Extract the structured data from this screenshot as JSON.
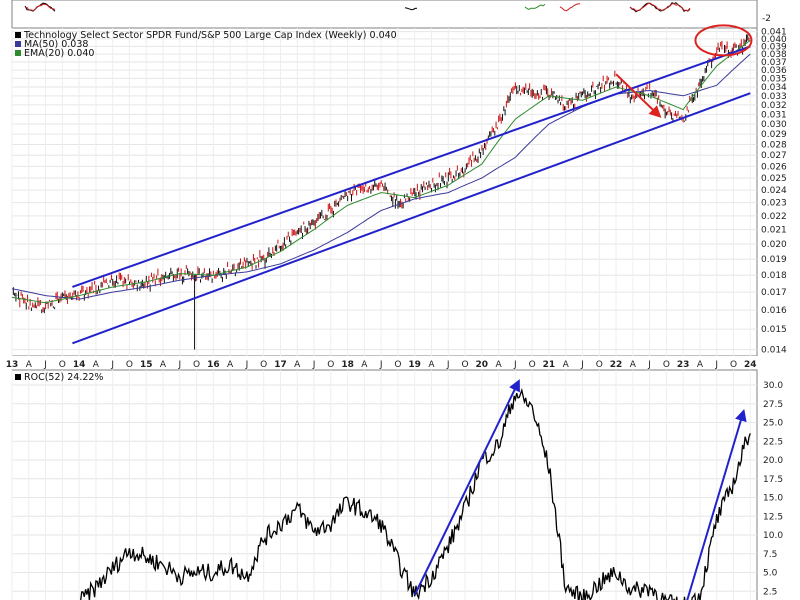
{
  "chart_data": [
    {
      "type": "line",
      "chart_style": "ohlc-bars",
      "title": "Technology Select Sector SPDR Fund/S&P 500 Large Cap Index (Weekly) 0.040",
      "y_scale": "log",
      "ylim": [
        0.0137,
        0.0415
      ],
      "y_ticks": [
        0.014,
        0.015,
        0.016,
        0.017,
        0.018,
        0.019,
        0.02,
        0.021,
        0.022,
        0.023,
        0.024,
        0.025,
        0.026,
        0.027,
        0.028,
        0.029,
        0.03,
        0.031,
        0.032,
        0.033,
        0.034,
        0.035,
        0.036,
        0.037,
        0.038,
        0.039,
        0.04,
        0.041
      ],
      "x_ticks": [
        "13",
        "A",
        "J",
        "O",
        "14",
        "A",
        "J",
        "O",
        "15",
        "A",
        "J",
        "O",
        "16",
        "A",
        "J",
        "O",
        "17",
        "A",
        "J",
        "O",
        "18",
        "A",
        "J",
        "O",
        "19",
        "A",
        "J",
        "O",
        "20",
        "A",
        "J",
        "O",
        "21",
        "A",
        "J",
        "O",
        "22",
        "A",
        "J",
        "O",
        "23",
        "A",
        "J",
        "O",
        "24"
      ],
      "legend": [
        {
          "label": "Technology Select Sector SPDR Fund/S&P 500 Large Cap Index (Weekly) 0.040",
          "color": "#000000"
        },
        {
          "label": "MA(50) 0.038",
          "color": "#3a3a9a"
        },
        {
          "label": "EMA(20) 0.040",
          "color": "#2e8b2e"
        }
      ],
      "series": [
        {
          "name": "Technology Select Sector SPDR Fund/S&P 500 Large Cap Index (Weekly)",
          "x": [
            2013.0,
            2013.25,
            2013.5,
            2013.75,
            2014.0,
            2014.25,
            2014.5,
            2014.75,
            2015.0,
            2015.25,
            2015.5,
            2015.75,
            2016.0,
            2016.25,
            2016.5,
            2016.75,
            2017.0,
            2017.25,
            2017.5,
            2017.75,
            2018.0,
            2018.25,
            2018.5,
            2018.75,
            2019.0,
            2019.25,
            2019.5,
            2019.75,
            2020.0,
            2020.25,
            2020.5,
            2020.75,
            2021.0,
            2021.25,
            2021.5,
            2021.75,
            2022.0,
            2022.25,
            2022.5,
            2022.75,
            2023.0,
            2023.25,
            2023.5,
            2023.75,
            2024.0
          ],
          "values": [
            0.0169,
            0.0163,
            0.0162,
            0.0166,
            0.0169,
            0.0172,
            0.0177,
            0.0175,
            0.0176,
            0.0179,
            0.0181,
            0.0181,
            0.0179,
            0.0183,
            0.0187,
            0.0191,
            0.0199,
            0.0207,
            0.0215,
            0.0224,
            0.0237,
            0.0241,
            0.0243,
            0.023,
            0.0236,
            0.0245,
            0.025,
            0.0256,
            0.0275,
            0.03,
            0.034,
            0.033,
            0.0335,
            0.0318,
            0.033,
            0.034,
            0.035,
            0.033,
            0.0335,
            0.0315,
            0.0303,
            0.0345,
            0.0385,
            0.0382,
            0.04
          ],
          "color": "#000000"
        },
        {
          "name": "MA(50)",
          "x": [
            2013.0,
            2013.5,
            2014.0,
            2014.5,
            2015.0,
            2015.5,
            2016.0,
            2016.5,
            2017.0,
            2017.5,
            2018.0,
            2018.5,
            2019.0,
            2019.5,
            2020.0,
            2020.5,
            2021.0,
            2021.5,
            2022.0,
            2022.5,
            2023.0,
            2023.5,
            2024.0
          ],
          "values": [
            0.0172,
            0.0168,
            0.0166,
            0.017,
            0.0173,
            0.0177,
            0.018,
            0.0182,
            0.0187,
            0.0196,
            0.0208,
            0.0224,
            0.0233,
            0.0238,
            0.025,
            0.0268,
            0.03,
            0.0318,
            0.0332,
            0.0336,
            0.033,
            0.0342,
            0.038
          ],
          "color": "#3a3a9a"
        },
        {
          "name": "EMA(20)",
          "x": [
            2013.0,
            2013.5,
            2014.0,
            2014.5,
            2015.0,
            2015.5,
            2016.0,
            2016.5,
            2017.0,
            2017.5,
            2018.0,
            2018.5,
            2019.0,
            2019.5,
            2020.0,
            2020.5,
            2021.0,
            2021.5,
            2022.0,
            2022.5,
            2023.0,
            2023.5,
            2024.0
          ],
          "values": [
            0.0167,
            0.0164,
            0.0168,
            0.0173,
            0.0176,
            0.0181,
            0.018,
            0.0185,
            0.0195,
            0.021,
            0.0228,
            0.0238,
            0.0234,
            0.0244,
            0.0262,
            0.0305,
            0.033,
            0.0325,
            0.034,
            0.033,
            0.0315,
            0.0365,
            0.0398
          ],
          "color": "#2e8b2e"
        }
      ],
      "annotations": [
        {
          "type": "trendline",
          "from": [
            2013.9,
            0.0173
          ],
          "to": [
            2024.0,
            0.039
          ],
          "color": "#2222cc"
        },
        {
          "type": "trendline",
          "from": [
            2013.9,
            0.0143
          ],
          "to": [
            2024.0,
            0.0333
          ],
          "color": "#2222cc"
        },
        {
          "type": "arrow",
          "from": [
            2022.0,
            0.0355
          ],
          "to": [
            2022.65,
            0.0308
          ],
          "color": "#dd2222"
        },
        {
          "type": "ellipse",
          "center": [
            2023.6,
            0.0398
          ],
          "color": "#dd2222"
        }
      ]
    },
    {
      "type": "line",
      "title": "ROC(52) 24.22%",
      "ylim": [
        0,
        32
      ],
      "y_ticks": [
        2.5,
        5.0,
        7.5,
        10.0,
        12.5,
        15.0,
        17.5,
        20.0,
        22.5,
        25.0,
        27.5,
        30.0
      ],
      "legend": [
        {
          "label": "ROC(52) 24.22%",
          "color": "#000000"
        }
      ],
      "series": [
        {
          "name": "ROC(52)",
          "x": [
            2014.0,
            2014.25,
            2014.5,
            2014.75,
            2015.0,
            2015.25,
            2015.5,
            2015.75,
            2016.0,
            2016.25,
            2016.5,
            2016.75,
            2017.0,
            2017.25,
            2017.5,
            2017.75,
            2018.0,
            2018.25,
            2018.5,
            2018.75,
            2019.0,
            2019.25,
            2019.5,
            2019.75,
            2020.0,
            2020.25,
            2020.5,
            2020.75,
            2021.0,
            2021.25,
            2021.5,
            2021.75,
            2022.0,
            2022.25,
            2022.5,
            2022.75,
            2023.0,
            2023.25,
            2023.5,
            2023.75,
            2024.0
          ],
          "values": [
            1.0,
            3.0,
            5.5,
            8.0,
            7.0,
            6.0,
            4.5,
            5.0,
            5.0,
            6.0,
            4.5,
            9.5,
            11.5,
            13.5,
            10.5,
            11.5,
            14.5,
            13.0,
            11.5,
            6.5,
            2.0,
            4.5,
            8.5,
            13.5,
            20.0,
            22.0,
            29.0,
            27.0,
            19.0,
            3.0,
            1.5,
            3.5,
            5.0,
            2.5,
            3.0,
            1.0,
            0.5,
            2.0,
            12.0,
            17.0,
            24.22
          ],
          "color": "#000000"
        }
      ],
      "annotations": [
        {
          "type": "arrow",
          "from": [
            2019.0,
            2.0
          ],
          "to": [
            2020.55,
            30.5
          ],
          "color": "#2222cc"
        },
        {
          "type": "arrow",
          "from": [
            2023.05,
            1.0
          ],
          "to": [
            2023.9,
            26.5
          ],
          "color": "#2222cc"
        }
      ]
    }
  ],
  "top_panel": {
    "y_tick": "-2"
  }
}
